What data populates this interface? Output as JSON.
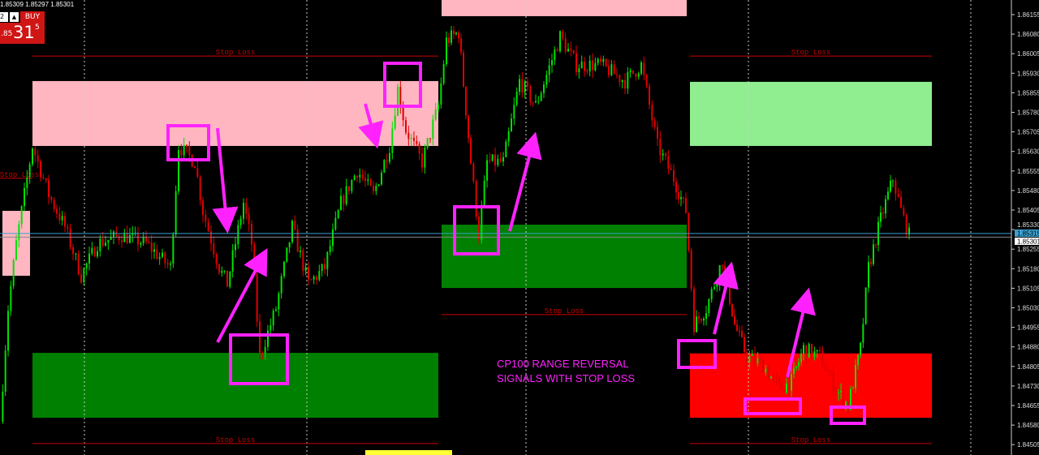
{
  "header": {
    "ohlc_text": "1.85309 1.85297 1.85301",
    "lot_value": "2",
    "spin_label": "▲",
    "buy_label": "BUY",
    "price_prefix": ".85",
    "price_big": "31",
    "price_sup": "5"
  },
  "annotation": {
    "line1": "CP100 RANGE REVERSAL",
    "line2": "SIGNALS WITH STOP LOSS"
  },
  "colors": {
    "bull": "#00e000",
    "bear": "#e00000",
    "pink_zone": "#ffb6c1",
    "green_zone": "#008000",
    "light_green_zone": "#90ee90",
    "red_zone": "#ff0000",
    "stop_loss": "#cc0000",
    "annotation": "#ff22ff",
    "bid_line": "#3aa0d0"
  },
  "chart_data": {
    "type": "candlestick",
    "y_ticks": [
      "1.86155",
      "1.86080",
      "1.86005",
      "1.85930",
      "1.85855",
      "1.85780",
      "1.85705",
      "1.85630",
      "1.85555",
      "1.85480",
      "1.85405",
      "1.85330",
      "1.85255",
      "1.85180",
      "1.85105",
      "1.85030",
      "1.84955",
      "1.84880",
      "1.84805",
      "1.84730",
      "1.84655",
      "1.84580",
      "1.84505"
    ],
    "ylim": [
      1.8448,
      1.86211
    ],
    "current_bid": "1.85315",
    "last_price": "1.85301",
    "price_path": [
      [
        0,
        1.84593
      ],
      [
        1,
        1.85028
      ],
      [
        2,
        1.85277
      ],
      [
        4,
        1.85651
      ],
      [
        6,
        1.85464
      ],
      [
        8,
        1.8534
      ],
      [
        10,
        1.85153
      ],
      [
        12,
        1.85277
      ],
      [
        15,
        1.85309
      ],
      [
        18,
        1.85277
      ],
      [
        21,
        1.85184
      ],
      [
        22,
        1.85651
      ],
      [
        24,
        1.85589
      ],
      [
        25,
        1.85402
      ],
      [
        27,
        1.85184
      ],
      [
        28,
        1.85122
      ],
      [
        30,
        1.85433
      ],
      [
        31,
        1.85277
      ],
      [
        32,
        1.84842
      ],
      [
        34,
        1.85028
      ],
      [
        36,
        1.8534
      ],
      [
        38,
        1.85122
      ],
      [
        40,
        1.85184
      ],
      [
        42,
        1.85433
      ],
      [
        44,
        1.85558
      ],
      [
        46,
        1.85464
      ],
      [
        48,
        1.85651
      ],
      [
        49,
        1.85869
      ],
      [
        50,
        1.85713
      ],
      [
        52,
        1.85589
      ],
      [
        54,
        1.85806
      ],
      [
        55,
        1.86055
      ],
      [
        56.5,
        1.86087
      ],
      [
        58,
        1.85589
      ],
      [
        59,
        1.85309
      ],
      [
        60,
        1.85589
      ],
      [
        62,
        1.85589
      ],
      [
        64,
        1.859
      ],
      [
        66,
        1.85806
      ],
      [
        69,
        1.86071
      ],
      [
        71,
        1.85962
      ],
      [
        74,
        1.85962
      ],
      [
        77,
        1.859
      ],
      [
        79,
        1.85962
      ],
      [
        81,
        1.85651
      ],
      [
        83,
        1.85526
      ],
      [
        84.5,
        1.85402
      ],
      [
        85.5,
        1.84966
      ],
      [
        87,
        1.85028
      ],
      [
        89,
        1.85215
      ],
      [
        90.5,
        1.84966
      ],
      [
        92,
        1.84842
      ],
      [
        94,
        1.84811
      ],
      [
        96,
        1.84717
      ],
      [
        97.5,
        1.84748
      ],
      [
        99,
        1.84873
      ],
      [
        101,
        1.84842
      ],
      [
        103,
        1.84717
      ],
      [
        104.5,
        1.84655
      ],
      [
        106,
        1.84873
      ],
      [
        107,
        1.85184
      ],
      [
        108.5,
        1.85371
      ],
      [
        110,
        1.85526
      ],
      [
        111,
        1.85402
      ],
      [
        112,
        1.85309
      ]
    ],
    "zones": [
      {
        "kind": "pink_zone",
        "from": 4,
        "to": 54,
        "top": 1.859,
        "bottom": 1.85651
      },
      {
        "kind": "green_zone",
        "from": 4,
        "to": 54,
        "top": 1.84857,
        "bottom": 1.84608
      },
      {
        "kind": "pink_zone",
        "from": 54.4,
        "to": 84.6,
        "top": 1.86211,
        "bottom": 1.86149
      },
      {
        "kind": "green_zone",
        "from": 54.4,
        "to": 84.6,
        "top": 1.85349,
        "bottom": 1.85106
      },
      {
        "kind": "light_green_zone",
        "from": 85,
        "to": 114.8,
        "top": 1.85897,
        "bottom": 1.85651
      },
      {
        "kind": "red_zone",
        "from": 85,
        "to": 114.8,
        "top": 1.84855,
        "bottom": 1.84608
      },
      {
        "kind": "pink_zone",
        "from": 0.3,
        "to": 3.7,
        "top": 1.85402,
        "bottom": 1.85153
      }
    ],
    "stop_losses": [
      {
        "from": 4,
        "to": 54,
        "price": 1.85996,
        "label": "Stop Loss"
      },
      {
        "from": 4,
        "to": 54,
        "price": 1.84509,
        "label": "Stop Loss"
      },
      {
        "from": 54.4,
        "to": 84.6,
        "price": 1.85004,
        "label": "Stop Loss"
      },
      {
        "from": 85,
        "to": 114.8,
        "price": 1.85996,
        "label": "Stop Loss"
      },
      {
        "from": 85,
        "to": 114.8,
        "price": 1.84509,
        "label": "Stop Loss"
      },
      {
        "from": -1,
        "to": 4,
        "price": 1.85527,
        "label": "Stop Loss"
      }
    ]
  }
}
